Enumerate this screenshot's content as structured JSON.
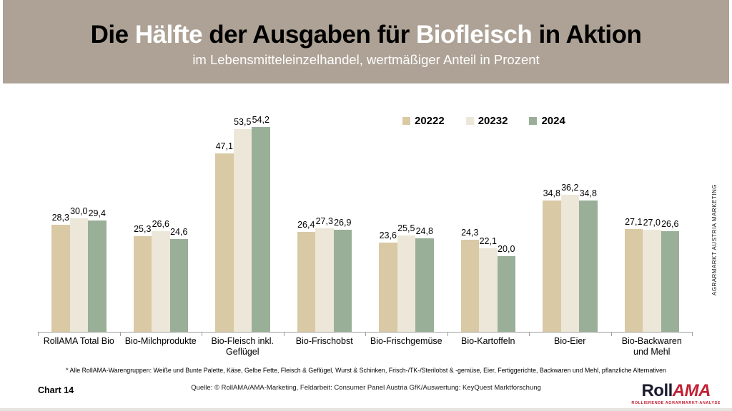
{
  "header": {
    "title_parts": [
      "Die ",
      "Hälfte",
      " der Ausgaben für ",
      "Biofleisch",
      " in Aktion"
    ],
    "subtitle": "im Lebensmitteleinzelhandel, wertmäßiger Anteil in Prozent",
    "background_color": "#ada295",
    "highlight_color": "#ffffff"
  },
  "chart_data": {
    "type": "bar",
    "title": "Die Hälfte der Ausgaben für Biofleisch in Aktion",
    "subtitle": "im Lebensmitteleinzelhandel, wertmäßiger Anteil in Prozent",
    "categories": [
      "RollAMA Total Bio",
      "Bio-Milchprodukte",
      "Bio-Fleisch inkl. Geflügel",
      "Bio-Frischobst",
      "Bio-Frischgemüse",
      "Bio-Kartoffeln",
      "Bio-Eier",
      "Bio-Backwaren und Mehl"
    ],
    "series": [
      {
        "name": "20222",
        "color": "#d9c9a4",
        "values": [
          28.3,
          25.3,
          47.1,
          26.4,
          23.6,
          24.3,
          34.8,
          27.1
        ]
      },
      {
        "name": "20232",
        "color": "#ece7d8",
        "values": [
          30.0,
          26.6,
          53.5,
          27.3,
          25.5,
          22.1,
          36.2,
          27.0
        ]
      },
      {
        "name": "2024",
        "color": "#9aaf98",
        "values": [
          29.4,
          24.6,
          54.2,
          26.9,
          24.8,
          20.0,
          34.8,
          26.6
        ]
      }
    ],
    "ylim": [
      0,
      60
    ],
    "grid": false,
    "legend_position": "top-right",
    "value_label_format": "comma-decimal-1",
    "axis_color": "#9e9e9e"
  },
  "footnote": "* Alle RollAMA-Warengruppen: Weiße und Bunte Palette, Käse, Gelbe Fette, Fleisch & Geflügel, Wurst & Schinken, Frisch-/TK-/Sterilobst & -gemüse, Eier, Fertiggerichte, Backwaren und Mehl, pflanzliche Alternativen",
  "source": "Quelle: © RollAMA/AMA-Marketing, Feldarbeit: Consumer Panel Austria GfK/Auswertung: KeyQuest Marktforschung",
  "chart_number": "Chart 14",
  "side_label": "AGRARMARKT AUSTRIA MARKETING",
  "logo": {
    "text_dark": "Roll",
    "text_red": "AMA",
    "tagline": "ROLLIERENDE AGRARMARKT-ANALYSE",
    "red": "#c22032",
    "dark": "#1b1b2f"
  }
}
